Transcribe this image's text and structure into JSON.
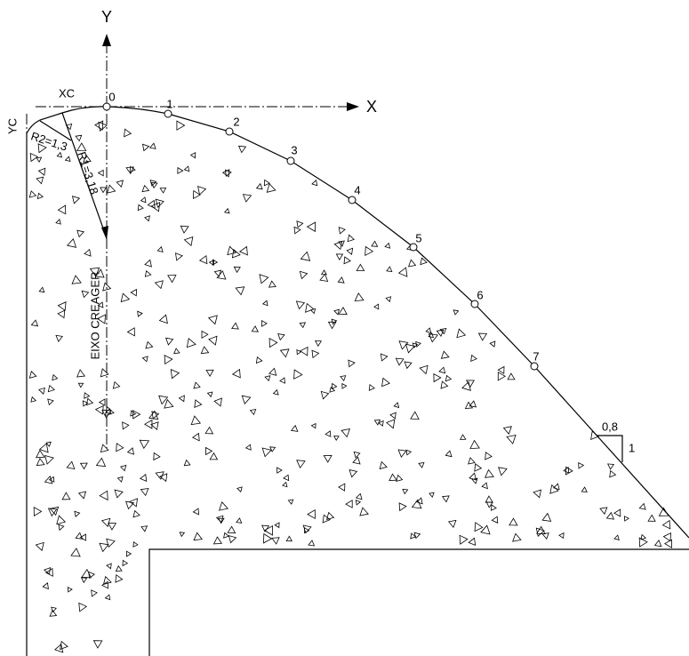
{
  "axes": {
    "y": "Y",
    "x": "X",
    "xc": "XC",
    "yc": "YC"
  },
  "points": [
    "0",
    "1",
    "2",
    "3",
    "4",
    "5",
    "6",
    "7"
  ],
  "radii": {
    "r1": "R1=3,18",
    "r2": "R2=1,3"
  },
  "axis_label": "EIXO CREAGER",
  "slope": {
    "run": "0,8",
    "rise": "1"
  }
}
